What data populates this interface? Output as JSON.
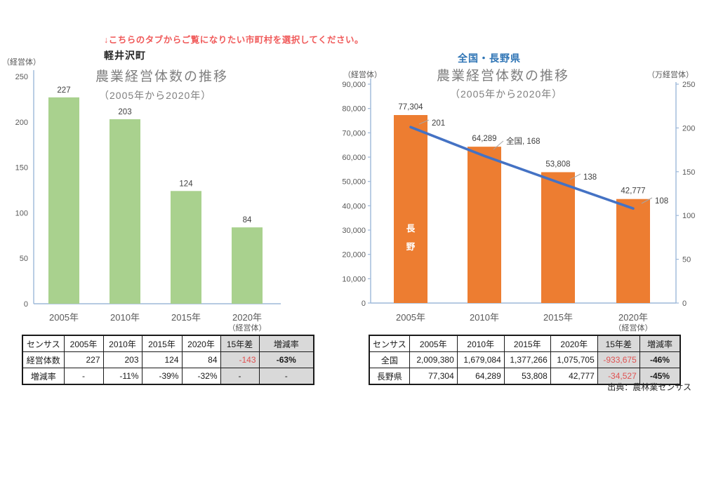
{
  "note": {
    "text": "↓こちらのタブからご覧になりたい市町村を選択してください。"
  },
  "source_label": "出典：農林業センサス",
  "colors": {
    "green_bar": "#A9D18E",
    "orange_bar": "#ED7D31",
    "line_blue": "#4472C4",
    "axis": "#9DB8D9",
    "tick_text": "#595959",
    "bar_label_text": "#404040",
    "title_gray": "#7F7F7F",
    "region_blue": "#2E74B5",
    "negative_red": "#E05252",
    "table_gray_bg": "#D9D9D9",
    "leader_gray": "#A6A6A6"
  },
  "left_chart": {
    "region": "軽井沢町",
    "title": "農業経営体数の推移",
    "subtitle": "（2005年から2020年）",
    "unit_left": "（経営体）",
    "unit_x": "（経営体）"
  },
  "right_chart": {
    "region": "全国・長野県",
    "title": "農業経営体数の推移",
    "subtitle": "（2005年から2020年）",
    "unit_left": "（経営体）",
    "unit_right": "（万経営体）",
    "unit_x": "（経営体）"
  },
  "chart_data": [
    {
      "type": "bar",
      "region": "軽井沢町",
      "title": "農業経営体数の推移",
      "subtitle": "（2005年から2020年）",
      "categories": [
        "2005年",
        "2010年",
        "2015年",
        "2020年"
      ],
      "values": [
        227,
        203,
        124,
        84
      ],
      "data_labels": [
        "227",
        "203",
        "124",
        "84"
      ],
      "ylabel": "（経営体）",
      "xlabel_unit": "（経営体）",
      "ylim": [
        0,
        250
      ],
      "yticks": [
        "0",
        "50",
        "100",
        "150",
        "200",
        "250"
      ],
      "grid": false,
      "legend": "none"
    },
    {
      "type": "bar+line",
      "region": "全国・長野県",
      "title": "農業経営体数の推移",
      "subtitle": "（2005年から2020年）",
      "categories": [
        "2005年",
        "2010年",
        "2015年",
        "2020年"
      ],
      "series": [
        {
          "name": "長野",
          "chart": "bar",
          "axis": "left",
          "values": [
            77304,
            64289,
            53808,
            42777
          ],
          "data_labels": [
            "77,304",
            "64,289",
            "53,808",
            "42,777"
          ],
          "in_bar_label": "長野"
        },
        {
          "name": "全国",
          "chart": "line",
          "axis": "right",
          "values": [
            201,
            168,
            138,
            108
          ],
          "data_labels": [
            "201",
            "全国, 168",
            "138",
            "108"
          ]
        }
      ],
      "ylim_left": [
        0,
        90000
      ],
      "yticks_left": [
        "0",
        "10,000",
        "20,000",
        "30,000",
        "40,000",
        "50,000",
        "60,000",
        "70,000",
        "80,000",
        "90,000"
      ],
      "ylim_right": [
        0,
        250
      ],
      "yticks_right": [
        "0",
        "50",
        "100",
        "150",
        "200",
        "250"
      ],
      "ylabel_left": "（経営体）",
      "ylabel_right": "（万経営体）",
      "xlabel_unit": "（経営体）",
      "grid": false,
      "legend": "none"
    }
  ],
  "left_table": {
    "headers": [
      "センサス",
      "2005年",
      "2010年",
      "2015年",
      "2020年",
      "15年差",
      "増減率"
    ],
    "rows": [
      {
        "label": "経営体数",
        "values": [
          "227",
          "203",
          "124",
          "84"
        ],
        "diff": "-143",
        "rate": "-63%"
      },
      {
        "label": "増減率",
        "values": [
          "-",
          "-11%",
          "-39%",
          "-32%"
        ],
        "diff": "-",
        "rate": "-"
      }
    ]
  },
  "right_table": {
    "headers": [
      "センサス",
      "2005年",
      "2010年",
      "2015年",
      "2020年",
      "15年差",
      "増減率"
    ],
    "rows": [
      {
        "label": "全国",
        "values": [
          "2,009,380",
          "1,679,084",
          "1,377,266",
          "1,075,705"
        ],
        "diff": "-933,675",
        "rate": "-46%"
      },
      {
        "label": "長野県",
        "values": [
          "77,304",
          "64,289",
          "53,808",
          "42,777"
        ],
        "diff": "-34,527",
        "rate": "-45%"
      }
    ]
  }
}
